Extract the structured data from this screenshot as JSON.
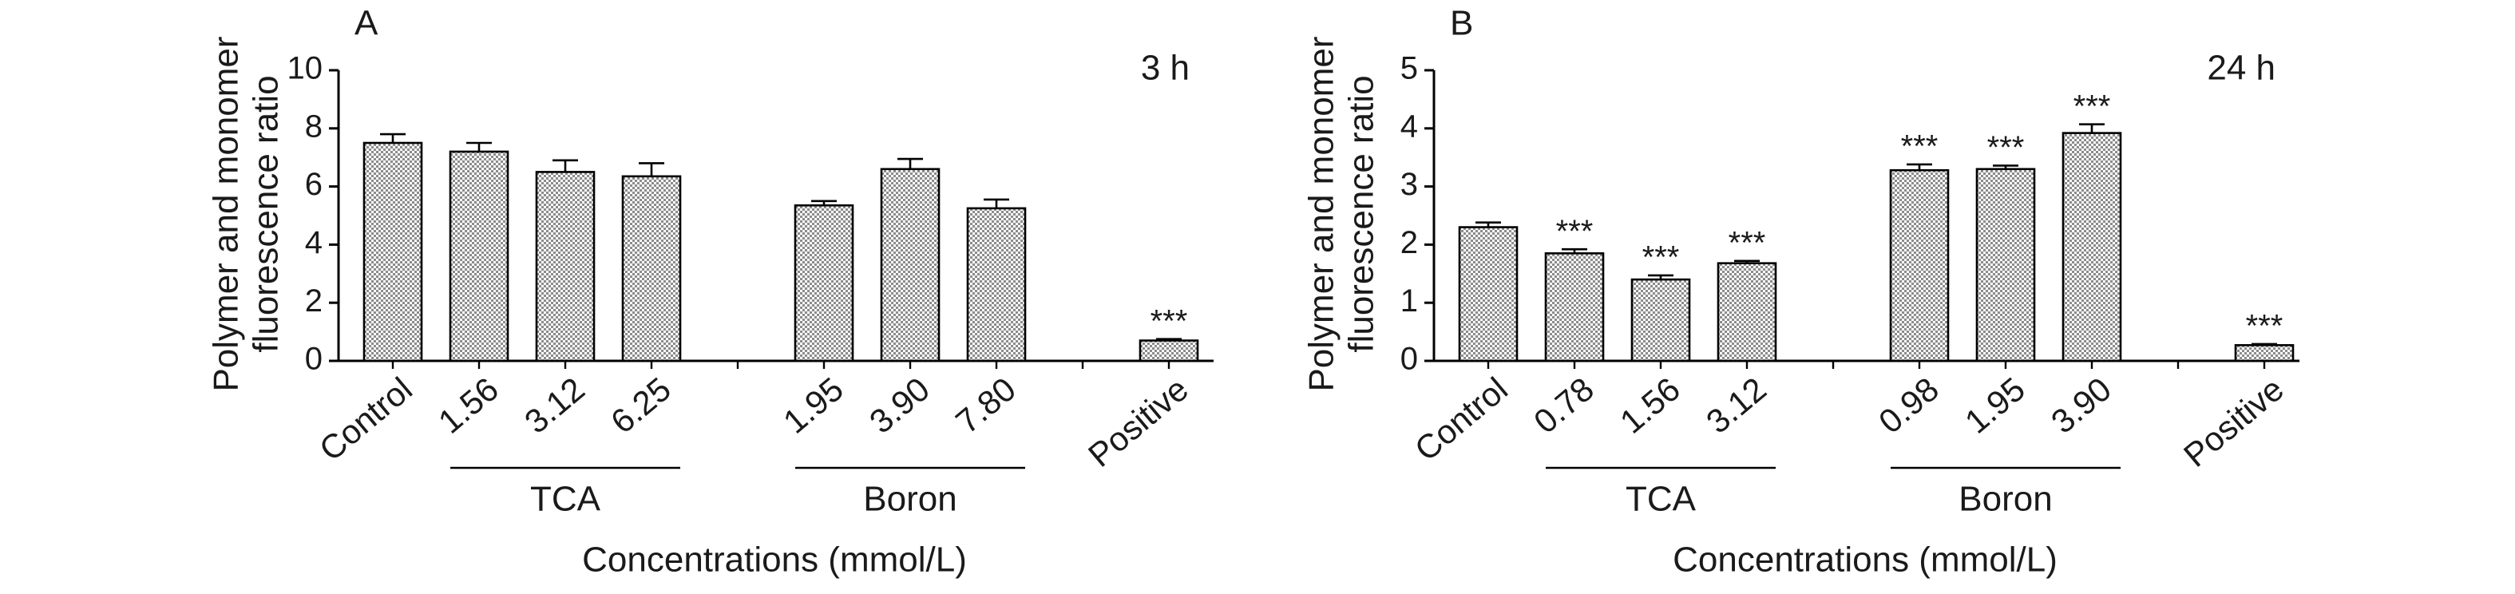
{
  "chart_data": [
    {
      "type": "bar",
      "panel": "A",
      "annotation": "3 h",
      "ylabel": [
        "Polymer and monomer",
        "fluorescence  ratio"
      ],
      "xlabel": "Concentrations (mmol/L)",
      "categories": [
        "Control",
        "1.56",
        "3.12",
        "6.25",
        null,
        "1.95",
        "3.90",
        "7.80",
        null,
        "Positive"
      ],
      "values": [
        7.5,
        7.2,
        6.5,
        6.35,
        null,
        5.35,
        6.6,
        5.25,
        null,
        0.7
      ],
      "errors": [
        0.3,
        0.3,
        0.4,
        0.45,
        null,
        0.15,
        0.35,
        0.3,
        null,
        0.05
      ],
      "value_annotations": [
        null,
        null,
        null,
        null,
        null,
        null,
        null,
        null,
        null,
        "***"
      ],
      "groups": [
        {
          "label": "TCA",
          "categories": [
            "1.56",
            "3.12",
            "6.25"
          ]
        },
        {
          "label": "Boron",
          "categories": [
            "1.95",
            "3.90",
            "7.80"
          ]
        }
      ],
      "color": "#8c8c8c",
      "ylim": [
        0,
        10
      ],
      "yticks": [
        0,
        2,
        4,
        6,
        8,
        10
      ]
    },
    {
      "type": "bar",
      "panel": "B",
      "annotation": "24 h",
      "ylabel": [
        "Polymer and monomer",
        "fluorescence  ratio"
      ],
      "xlabel": "Concentrations (mmol/L)",
      "categories": [
        "Control",
        "0.78",
        "1.56",
        "3.12",
        null,
        "0.98",
        "1.95",
        "3.90",
        null,
        "Positive"
      ],
      "values": [
        2.3,
        1.85,
        1.4,
        1.68,
        null,
        3.28,
        3.3,
        3.92,
        null,
        0.27
      ],
      "errors": [
        0.08,
        0.07,
        0.07,
        0.04,
        null,
        0.1,
        0.06,
        0.15,
        null,
        0.02
      ],
      "value_annotations": [
        null,
        "***",
        "***",
        "***",
        null,
        "***",
        "***",
        "***",
        null,
        "***"
      ],
      "groups": [
        {
          "label": "TCA",
          "categories": [
            "0.78",
            "1.56",
            "3.12"
          ]
        },
        {
          "label": "Boron",
          "categories": [
            "0.98",
            "1.95",
            "3.90"
          ]
        }
      ],
      "color": "#8c8c8c",
      "ylim": [
        0,
        5
      ],
      "yticks": [
        0,
        1,
        2,
        3,
        4,
        5
      ]
    }
  ]
}
